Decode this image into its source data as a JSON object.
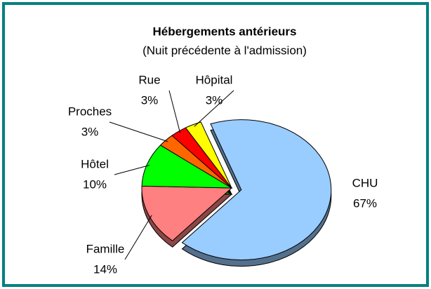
{
  "chart_data": {
    "type": "pie",
    "title": "Hébergements antérieurs",
    "subtitle": "(Nuit précédente à l'admission)",
    "categories": [
      "CHU",
      "Famille",
      "Hôtel",
      "Proches",
      "Rue",
      "Hôpital"
    ],
    "values": [
      67,
      14,
      10,
      3,
      3,
      3
    ],
    "value_labels": [
      "67%",
      "14%",
      "10%",
      "3%",
      "3%",
      "3%"
    ],
    "colors": [
      "#99ccff",
      "#ff8080",
      "#00ff00",
      "#ff6600",
      "#ff0000",
      "#ffff00"
    ]
  }
}
